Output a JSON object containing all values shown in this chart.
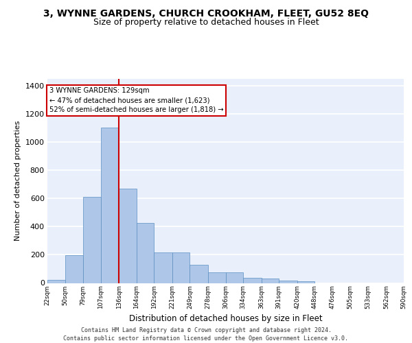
{
  "title": "3, WYNNE GARDENS, CHURCH CROOKHAM, FLEET, GU52 8EQ",
  "subtitle": "Size of property relative to detached houses in Fleet",
  "xlabel": "Distribution of detached houses by size in Fleet",
  "ylabel": "Number of detached properties",
  "bar_values": [
    20,
    195,
    610,
    1105,
    670,
    425,
    215,
    215,
    130,
    75,
    75,
    35,
    30,
    15,
    10,
    0,
    0,
    0,
    0,
    0
  ],
  "bin_edges": [
    22,
    50,
    79,
    107,
    136,
    164,
    192,
    221,
    249,
    278,
    306,
    334,
    363,
    391,
    420,
    448,
    476,
    505,
    533,
    562,
    590
  ],
  "tick_labels": [
    "22sqm",
    "50sqm",
    "79sqm",
    "107sqm",
    "136sqm",
    "164sqm",
    "192sqm",
    "221sqm",
    "249sqm",
    "278sqm",
    "306sqm",
    "334sqm",
    "363sqm",
    "391sqm",
    "420sqm",
    "448sqm",
    "476sqm",
    "505sqm",
    "533sqm",
    "562sqm",
    "590sqm"
  ],
  "bar_color": "#aec6e8",
  "bar_edge_color": "#5a8fc2",
  "vline_x": 136,
  "vline_color": "#cc0000",
  "annotation_text": "3 WYNNE GARDENS: 129sqm\n← 47% of detached houses are smaller (1,623)\n52% of semi-detached houses are larger (1,818) →",
  "annotation_box_color": "#cc0000",
  "ylim": [
    0,
    1450
  ],
  "yticks": [
    0,
    200,
    400,
    600,
    800,
    1000,
    1200,
    1400
  ],
  "bg_color": "#eaf0fb",
  "grid_color": "#ffffff",
  "footer_text": "Contains HM Land Registry data © Crown copyright and database right 2024.\nContains public sector information licensed under the Open Government Licence v3.0.",
  "title_fontsize": 10,
  "subtitle_fontsize": 9
}
